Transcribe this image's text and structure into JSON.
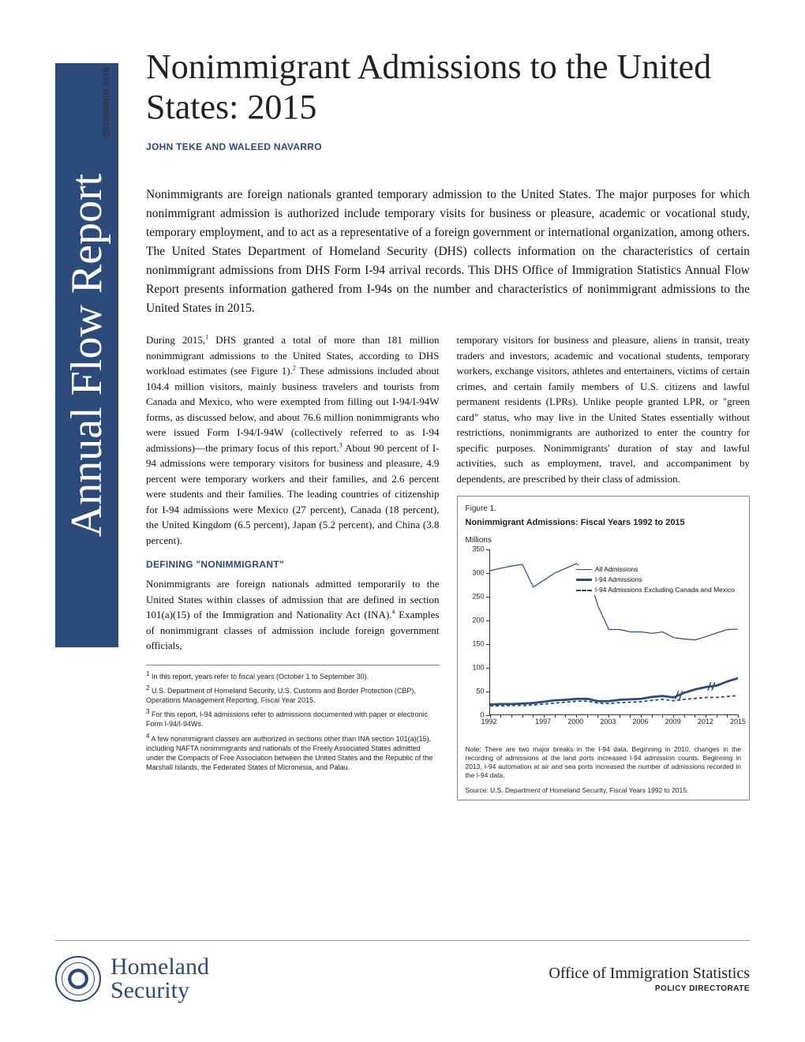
{
  "sidebar": {
    "label": "Annual Flow Report"
  },
  "date_label": "DECEMBER 2016",
  "title": "Nonimmigrant Admissions to the United States: 2015",
  "authors": "JOHN TEKE AND WALEED NAVARRO",
  "intro": "Nonimmigrants are foreign nationals granted temporary admission to the United States. The major purposes for which nonimmigrant admission is authorized include temporary visits for business or pleasure, academic or vocational study, temporary employment, and to act as a representative of a foreign government or international organization, among others. The United States Department of Homeland Security (DHS) collects information on the characteristics of certain nonimmigrant admissions from DHS Form I-94 arrival records. This DHS Office of Immigration Statistics Annual Flow Report presents information gathered from I-94s on the number and characteristics of nonimmigrant admissions to the United States in 2015.",
  "col1": {
    "p1a": "During 2015,",
    "p1b": " DHS granted a total of more than 181 million nonimmigrant admissions to the United States, according to DHS workload estimates (see Figure 1).",
    "p1c": " These admissions included about 104.4 million visitors, mainly business travelers and tourists from Canada and Mexico, who were exempted from filling out I-94/I-94W forms, as discussed below, and about 76.6 million nonimmigrants who were issued Form I-94/I-94W (collectively referred to as I-94 admissions)—the primary focus of this report.",
    "p1d": " About 90 percent of I-94 admissions were temporary visitors for business and pleasure, 4.9 percent were temporary workers and their families, and 2.6 percent were students and their families. The leading countries of citizenship for I-94 admissions were Mexico (27 percent), Canada (18 percent), the United Kingdom (6.5 percent), Japan (5.2 percent), and China (3.8 percent).",
    "heading": "DEFINING \"NONIMMIGRANT\"",
    "p2a": "Nonimmigrants are foreign nationals admitted temporarily to the United States within classes of admission that are defined in section 101(a)(15) of the Immigration and Nationality Act (INA).",
    "p2b": " Examples of nonimmigrant classes of admission include foreign government officials,",
    "fn1": "In this report, years refer to fiscal years (October 1 to September 30).",
    "fn2": "U.S. Department of Homeland Security, U.S. Customs and Border Protection (CBP), Operations Management Reporting, Fiscal Year 2015.",
    "fn3": "For this report, I-94 admissions refer to admissions documented with paper or electronic Form I-94/I-94Ws.",
    "fn4": "A few nonimmigrant classes are authorized in sections other than INA section 101(a)(15), including NAFTA nonimmigrants and nationals of the Freely Associated States admitted under the Compacts of Free Association between the United States and the Republic of the Marshall Islands, the Federated States of Micronesia, and Palau."
  },
  "col2": {
    "p1": "temporary visitors for business and pleasure, aliens in transit, treaty traders and investors, academic and vocational students, temporary workers, exchange visitors, athletes and entertainers, victims of certain crimes, and certain family members of U.S. citizens and lawful permanent residents (LPRs). Unlike people granted LPR, or \"green card\" status, who may live in the United States essentially without restrictions, nonimmigrants are authorized to enter the country for specific purposes. Nonimmigrants' duration of stay and lawful activities, such as employment, travel, and accompaniment by dependents, are prescribed by their class of admission."
  },
  "figure": {
    "label": "Figure 1.",
    "title": "Nonimmigrant Admissions: Fiscal Years 1992 to 2015",
    "unit": "Millions",
    "ylim": [
      0,
      350
    ],
    "yticks": [
      0,
      50,
      100,
      150,
      200,
      250,
      300,
      350
    ],
    "xticks": [
      1992,
      1997,
      2000,
      2003,
      2006,
      2009,
      2012,
      2015
    ],
    "xrange": [
      1992,
      2015
    ],
    "legend": {
      "s1": "All Admissions",
      "s2": "I-94 Admissions",
      "s3": "I-94 Admissions Excluding Canada and Mexico"
    },
    "colors": {
      "all": "#2c4a7a",
      "i94": "#2c4a7a",
      "excl": "#2c4a7a"
    },
    "series_all": [
      [
        1992,
        305
      ],
      [
        1993,
        310
      ],
      [
        1994,
        315
      ],
      [
        1995,
        318
      ],
      [
        1996,
        270
      ],
      [
        1997,
        285
      ],
      [
        1998,
        300
      ],
      [
        1999,
        310
      ],
      [
        2000,
        320
      ],
      [
        2001,
        302
      ],
      [
        2002,
        230
      ],
      [
        2003,
        180
      ],
      [
        2004,
        180
      ],
      [
        2005,
        175
      ],
      [
        2006,
        175
      ],
      [
        2007,
        172
      ],
      [
        2008,
        175
      ],
      [
        2009,
        163
      ],
      [
        2010,
        160
      ],
      [
        2011,
        158
      ],
      [
        2012,
        165
      ],
      [
        2013,
        173
      ],
      [
        2014,
        180
      ],
      [
        2015,
        181
      ]
    ],
    "series_i94": [
      [
        1992,
        21
      ],
      [
        1993,
        22
      ],
      [
        1994,
        22
      ],
      [
        1995,
        23
      ],
      [
        1996,
        24
      ],
      [
        1997,
        27
      ],
      [
        1998,
        30
      ],
      [
        1999,
        31
      ],
      [
        2000,
        33
      ],
      [
        2001,
        33
      ],
      [
        2002,
        28
      ],
      [
        2003,
        28
      ],
      [
        2004,
        31
      ],
      [
        2005,
        32
      ],
      [
        2006,
        33
      ],
      [
        2007,
        37
      ],
      [
        2008,
        39
      ],
      [
        2009,
        36
      ],
      [
        2010,
        46
      ],
      [
        2011,
        53
      ],
      [
        2012,
        58
      ],
      [
        2013,
        61
      ],
      [
        2014,
        70
      ],
      [
        2015,
        77
      ]
    ],
    "series_excl": [
      [
        1992,
        18
      ],
      [
        1993,
        18
      ],
      [
        1994,
        19
      ],
      [
        1995,
        19
      ],
      [
        1996,
        20
      ],
      [
        1997,
        22
      ],
      [
        1998,
        24
      ],
      [
        1999,
        26
      ],
      [
        2000,
        28
      ],
      [
        2001,
        28
      ],
      [
        2002,
        24
      ],
      [
        2003,
        23
      ],
      [
        2004,
        25
      ],
      [
        2005,
        26
      ],
      [
        2006,
        27
      ],
      [
        2007,
        30
      ],
      [
        2008,
        32
      ],
      [
        2009,
        29
      ],
      [
        2010,
        32
      ],
      [
        2011,
        34
      ],
      [
        2012,
        36
      ],
      [
        2013,
        36
      ],
      [
        2014,
        38
      ],
      [
        2015,
        40
      ]
    ],
    "note": "Note: There are two major breaks in the I-94 data. Beginning in 2010, changes in the recording of admissions at the land ports increased I-94 admission counts. Beginning in 2013, I-94 automation at air and sea ports increased the number of admissions recorded in the I-94 data.",
    "source": "Source: U.S. Department of Homeland Security, Fiscal Years 1992 to 2015."
  },
  "footer": {
    "dhs1": "Homeland",
    "dhs2": "Security",
    "office1": "Office of Immigration Statistics",
    "office2": "POLICY DIRECTORATE"
  }
}
